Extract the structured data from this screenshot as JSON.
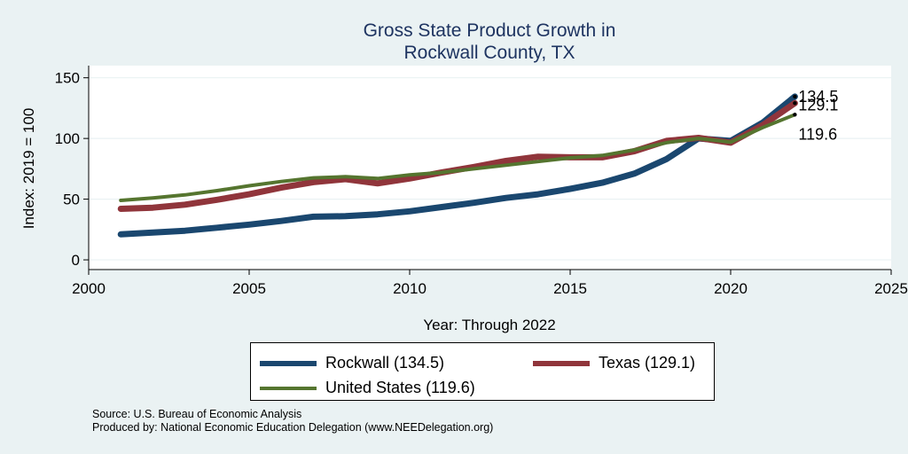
{
  "chart_data": {
    "type": "line",
    "title": [
      "Gross State Product Growth in",
      "Rockwall County, TX"
    ],
    "xlabel": "Year: Through 2022",
    "ylabel": "Index: 2019 = 100",
    "xlim": [
      2000,
      2025
    ],
    "ylim": [
      -8,
      160
    ],
    "xticks": [
      2000,
      2005,
      2010,
      2015,
      2020,
      2025
    ],
    "yticks": [
      0,
      50,
      100,
      150
    ],
    "grid": true,
    "legend_position": "bottom",
    "x": [
      2001,
      2002,
      2003,
      2004,
      2005,
      2006,
      2007,
      2008,
      2009,
      2010,
      2011,
      2012,
      2013,
      2014,
      2015,
      2016,
      2017,
      2018,
      2019,
      2020,
      2021,
      2022
    ],
    "series": [
      {
        "name": "Rockwall",
        "legend": "Rockwall  (134.5)",
        "end_label": "134.5",
        "color": "#1a476f",
        "width": 7,
        "values": [
          21,
          22.5,
          24,
          26.5,
          29,
          32,
          35.5,
          36,
          37.5,
          40,
          43.5,
          47,
          51,
          54,
          58.5,
          63.5,
          71,
          83,
          100,
          98,
          113,
          134.5
        ]
      },
      {
        "name": "Texas",
        "legend": "Texas (129.1)",
        "end_label": "129.1",
        "color": "#90353b",
        "width": 7,
        "values": [
          42,
          43,
          45.5,
          49.5,
          54,
          59.5,
          64,
          66.5,
          63,
          67,
          72,
          76.5,
          81.5,
          85,
          84.5,
          84.5,
          89.5,
          98,
          100.5,
          96.5,
          111,
          129.1
        ]
      },
      {
        "name": "United States",
        "legend": "United States (119.6)",
        "end_label": "119.6",
        "color": "#55752f",
        "width": 4,
        "values": [
          49,
          51,
          53.5,
          57,
          61,
          64.5,
          67.5,
          68.5,
          67,
          70,
          72,
          75,
          78,
          81,
          84,
          86,
          90.5,
          96.5,
          100,
          97,
          109,
          119.6
        ]
      }
    ]
  },
  "notes": {
    "source": "Source: U.S. Bureau of Economic Analysis",
    "produced_by": "Produced by: National Economic Education Delegation (www.NEEDelegation.org)"
  }
}
